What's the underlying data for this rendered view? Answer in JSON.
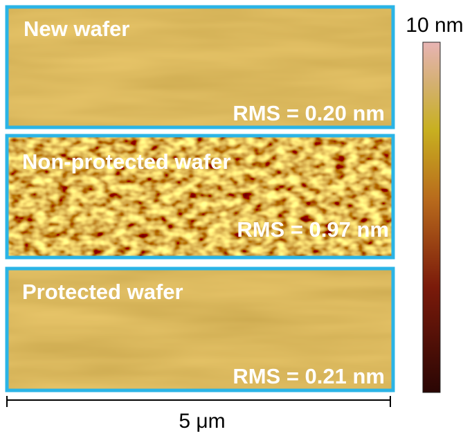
{
  "panels": [
    {
      "label": "New wafer",
      "rms": "RMS = 0.20 nm"
    },
    {
      "label": "Non-protected wafer",
      "rms": "RMS = 0.97 nm"
    },
    {
      "label": "Protected wafer",
      "rms": "RMS = 0.21 nm"
    }
  ],
  "colorbar": {
    "label": "10 nm"
  },
  "scale_bar": {
    "label": "5 μm"
  }
}
